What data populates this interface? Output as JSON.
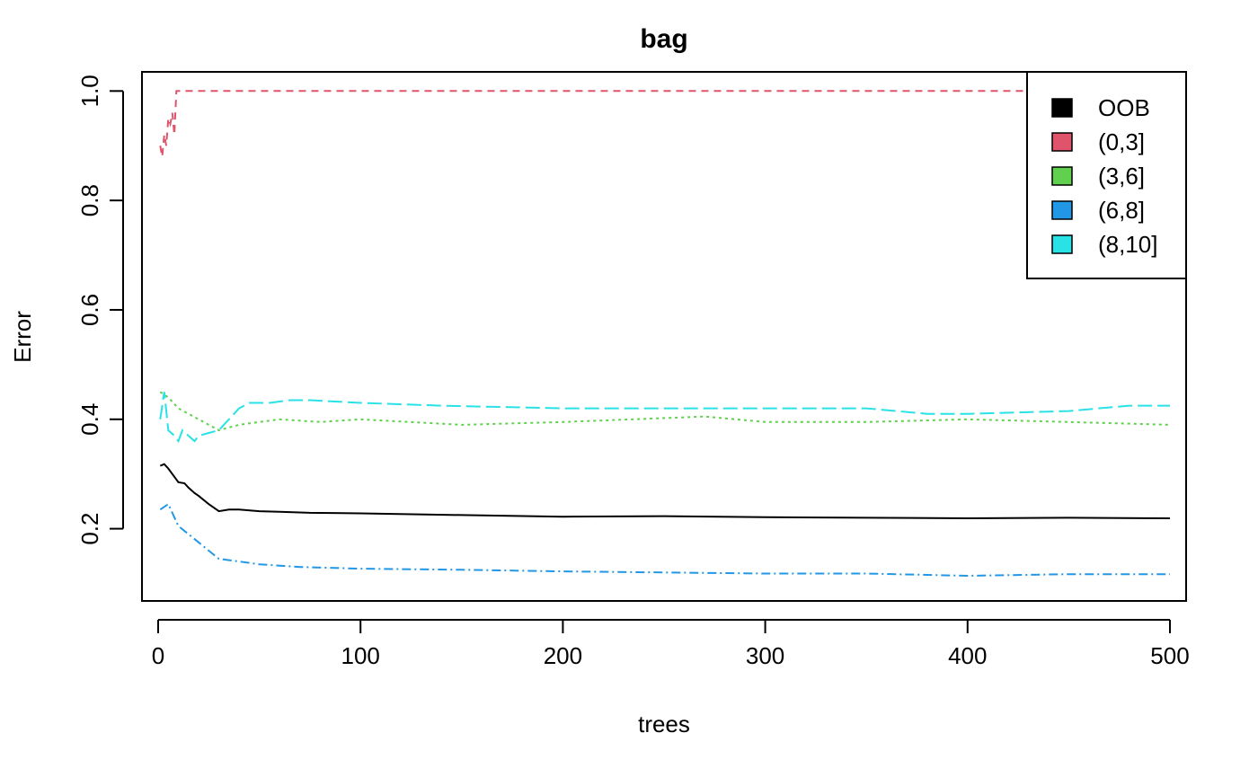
{
  "chart_data": {
    "type": "line",
    "title": "bag",
    "xlabel": "trees",
    "ylabel": "Error",
    "xlim": [
      -8,
      508
    ],
    "ylim": [
      0.068,
      1.035
    ],
    "x_ticks": [
      0,
      100,
      200,
      300,
      400,
      500
    ],
    "x_tick_labels": [
      "0",
      "100",
      "200",
      "300",
      "400",
      "500"
    ],
    "y_ticks": [
      0.2,
      0.4,
      0.6,
      0.8,
      1.0
    ],
    "y_tick_labels": [
      "0.2",
      "0.4",
      "0.6",
      "0.8",
      "1.0"
    ],
    "grid": false,
    "legend_position": "top-right",
    "series": [
      {
        "name": "OOB",
        "color": "#000000",
        "dash": "",
        "x": [
          1,
          3,
          5,
          8,
          10,
          13,
          15,
          18,
          20,
          25,
          30,
          35,
          40,
          50,
          60,
          75,
          100,
          150,
          200,
          250,
          300,
          350,
          400,
          450,
          500
        ],
        "y": [
          0.315,
          0.318,
          0.31,
          0.295,
          0.285,
          0.283,
          0.275,
          0.265,
          0.26,
          0.245,
          0.232,
          0.235,
          0.235,
          0.232,
          0.231,
          0.229,
          0.228,
          0.225,
          0.222,
          0.223,
          0.221,
          0.22,
          0.219,
          0.22,
          0.219
        ]
      },
      {
        "name": "(0,3]",
        "color": "#DF536B",
        "dash": "8,6",
        "x": [
          1,
          2,
          3,
          4,
          5,
          6,
          7,
          8,
          9,
          10,
          100,
          200,
          300,
          400,
          500
        ],
        "y": [
          0.9,
          0.88,
          0.92,
          0.9,
          0.95,
          0.94,
          0.96,
          0.92,
          1.0,
          1.0,
          1.0,
          1.0,
          1.0,
          1.0,
          1.0
        ]
      },
      {
        "name": "(3,6]",
        "color": "#61D04F",
        "dash": "3,4",
        "x": [
          1,
          5,
          10,
          15,
          20,
          25,
          30,
          35,
          40,
          50,
          60,
          80,
          100,
          150,
          200,
          270,
          300,
          350,
          400,
          450,
          500
        ],
        "y": [
          0.45,
          0.44,
          0.42,
          0.41,
          0.4,
          0.39,
          0.38,
          0.385,
          0.39,
          0.395,
          0.4,
          0.395,
          0.4,
          0.39,
          0.395,
          0.405,
          0.395,
          0.395,
          0.4,
          0.395,
          0.39
        ]
      },
      {
        "name": "(6,8]",
        "color": "#2297E6",
        "dash": "10,4,2,4",
        "x": [
          1,
          5,
          10,
          15,
          20,
          25,
          30,
          40,
          50,
          70,
          100,
          150,
          200,
          250,
          300,
          350,
          400,
          450,
          500
        ],
        "y": [
          0.235,
          0.245,
          0.205,
          0.19,
          0.175,
          0.16,
          0.145,
          0.14,
          0.135,
          0.13,
          0.127,
          0.125,
          0.122,
          0.12,
          0.118,
          0.118,
          0.114,
          0.117,
          0.117
        ]
      },
      {
        "name": "(8,10]",
        "color": "#28E2E5",
        "dash": "16,6",
        "x": [
          1,
          3,
          5,
          8,
          10,
          12,
          15,
          18,
          20,
          25,
          30,
          35,
          40,
          45,
          55,
          65,
          75,
          100,
          140,
          200,
          260,
          300,
          350,
          380,
          400,
          450,
          480,
          500
        ],
        "y": [
          0.4,
          0.45,
          0.38,
          0.37,
          0.36,
          0.38,
          0.37,
          0.36,
          0.37,
          0.375,
          0.38,
          0.4,
          0.42,
          0.43,
          0.43,
          0.435,
          0.435,
          0.43,
          0.425,
          0.42,
          0.42,
          0.42,
          0.42,
          0.41,
          0.41,
          0.415,
          0.425,
          0.425
        ]
      }
    ]
  }
}
